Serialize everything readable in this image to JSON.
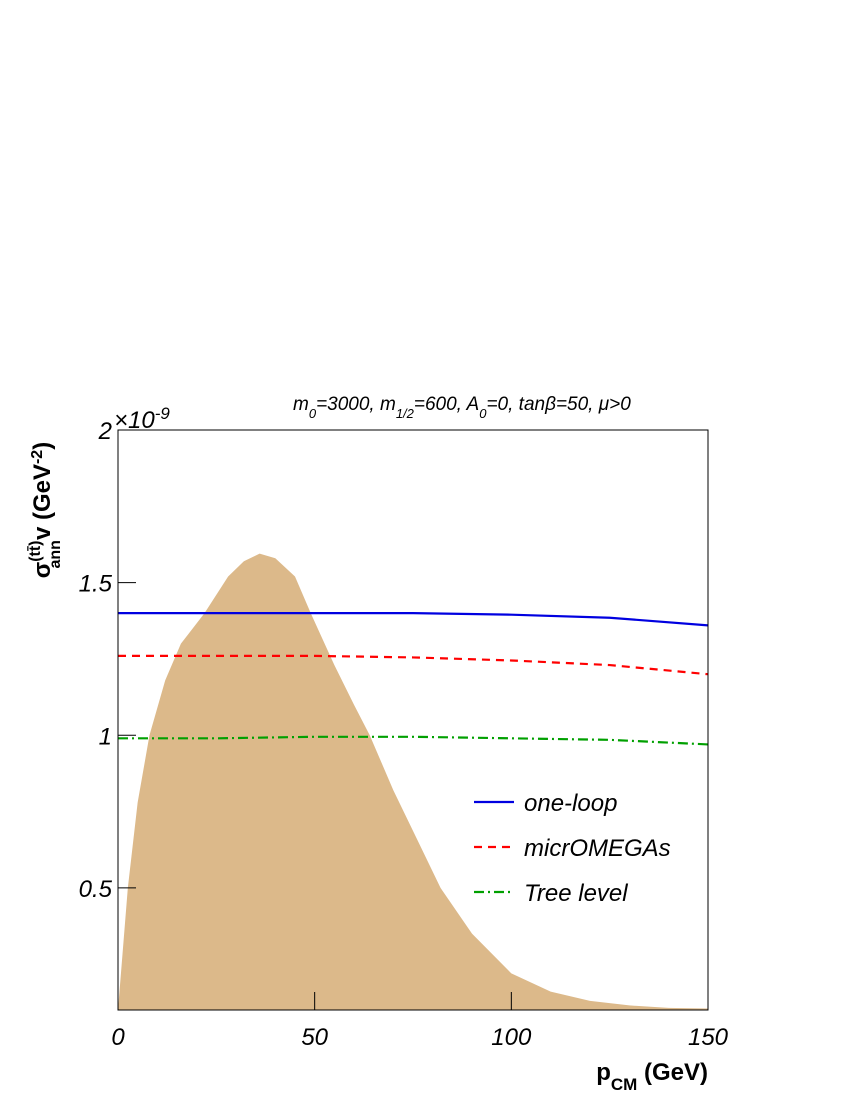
{
  "chart_data": {
    "type": "line",
    "annotation": {
      "m0": "m",
      "m0_sub": "0",
      "m0_val": "=3000,  m",
      "m12_sub": "1/2",
      "m12_val": "=600,  A",
      "a0_sub": "0",
      "rest": "=0,  tanβ=50,  μ>0"
    },
    "multiplier": {
      "base": "×10",
      "exp": "-9"
    },
    "ylabel": {
      "sigma": "σ",
      "sup": "(tt̄)",
      "sub": "ann",
      "rest": "v (GeV",
      "exp": "-2",
      "close": ")"
    },
    "xlabel": {
      "p": "p",
      "sub": "CM",
      "rest": " (GeV)"
    },
    "x": [
      0,
      25,
      50,
      75,
      100,
      125,
      150
    ],
    "series": [
      {
        "x": [
          0,
          2.5,
          5,
          8,
          12,
          16,
          22,
          28,
          32,
          36,
          40,
          45,
          49,
          55,
          60,
          64,
          70,
          76,
          82,
          90,
          100,
          110,
          120,
          130,
          140,
          150
        ],
        "values": [
          0.1,
          0.5,
          0.78,
          1.0,
          1.18,
          1.3,
          1.4,
          1.52,
          1.57,
          1.595,
          1.58,
          1.52,
          1.4,
          1.23,
          1.1,
          1.0,
          0.82,
          0.66,
          0.5,
          0.35,
          0.22,
          0.16,
          0.13,
          0.115,
          0.107,
          0.105
        ],
        "color": "#dcb98a",
        "style": "area"
      },
      {
        "name": "one-loop",
        "color": "#0000e0",
        "style": "solid",
        "values": [
          1.4,
          1.4,
          1.4,
          1.4,
          1.395,
          1.385,
          1.36
        ]
      },
      {
        "name": "micrOMEGAs",
        "color": "#ff0000",
        "style": "dashed",
        "values": [
          1.26,
          1.26,
          1.26,
          1.255,
          1.245,
          1.23,
          1.2
        ]
      },
      {
        "name": "Tree level",
        "color": "#00a000",
        "style": "dashdot",
        "values": [
          0.99,
          0.99,
          0.995,
          0.995,
          0.99,
          0.985,
          0.97
        ]
      }
    ],
    "xlim": [
      0,
      150
    ],
    "xticks": [
      0,
      50,
      100,
      150
    ],
    "ylim": [
      0.1,
      2
    ],
    "yticks": [
      0.5,
      1,
      1.5,
      2
    ],
    "legend": "right"
  }
}
